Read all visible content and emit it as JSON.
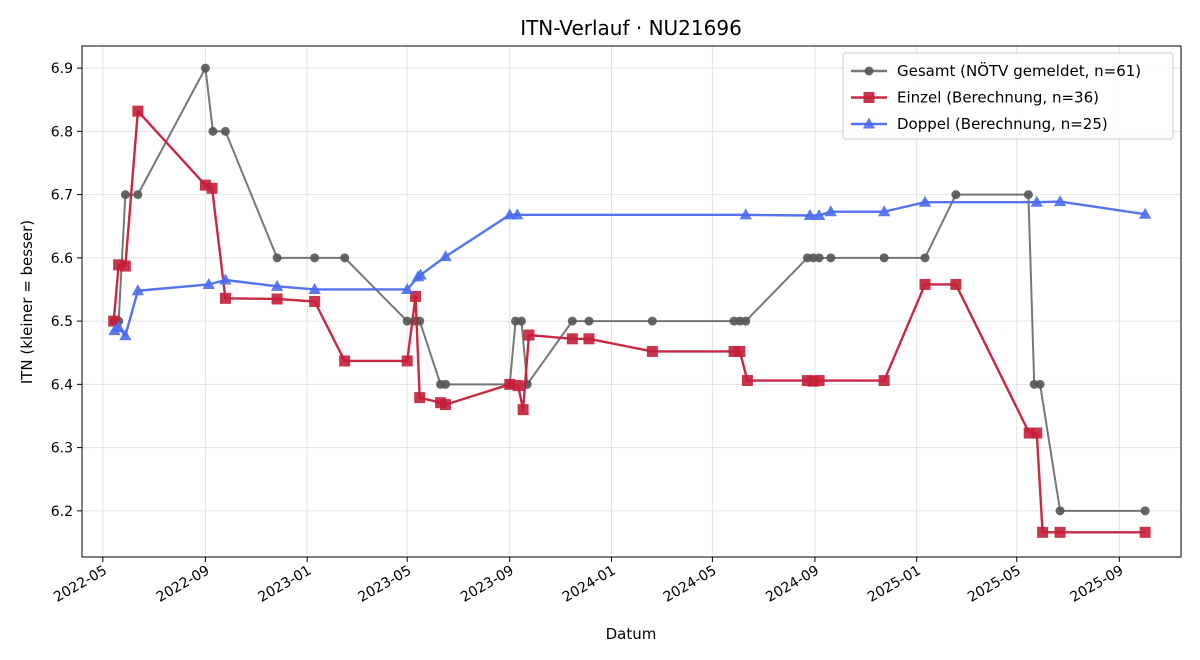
{
  "chart_data": {
    "type": "line",
    "title": "ITN-Verlauf · NU21696",
    "xlabel": "Datum",
    "ylabel": "ITN  (kleiner = besser)",
    "x_type": "date",
    "xlim": [
      "2022-04-06",
      "2025-11-14"
    ],
    "ylim": [
      6.127,
      6.935
    ],
    "x_ticks": [
      "2022-05-01",
      "2022-09-01",
      "2023-01-01",
      "2023-05-01",
      "2023-09-01",
      "2024-01-01",
      "2024-05-01",
      "2024-09-01",
      "2025-01-01",
      "2025-05-01",
      "2025-09-01"
    ],
    "x_tick_labels": [
      "2022-05",
      "2022-09",
      "2023-01",
      "2023-05",
      "2023-09",
      "2024-01",
      "2024-05",
      "2024-09",
      "2025-01",
      "2025-05",
      "2025-09"
    ],
    "y_ticks": [
      6.2,
      6.3,
      6.4,
      6.5,
      6.6,
      6.7,
      6.8,
      6.9
    ],
    "y_tick_labels": [
      "6.2",
      "6.3",
      "6.4",
      "6.5",
      "6.6",
      "6.7",
      "6.8",
      "6.9"
    ],
    "grid": true,
    "legend_position": "top-right",
    "series": [
      {
        "name": "Gesamt (NÖTV gemeldet, n=61)",
        "color": "#555555",
        "marker": "circle",
        "points": [
          [
            "2022-05-15",
            6.5
          ],
          [
            "2022-05-20",
            6.5
          ],
          [
            "2022-05-28",
            6.7
          ],
          [
            "2022-06-12",
            6.7
          ],
          [
            "2022-09-01",
            6.9
          ],
          [
            "2022-09-10",
            6.8
          ],
          [
            "2022-09-25",
            6.8
          ],
          [
            "2022-11-26",
            6.6
          ],
          [
            "2023-01-10",
            6.6
          ],
          [
            "2023-02-15",
            6.6
          ],
          [
            "2023-05-01",
            6.5
          ],
          [
            "2023-05-10",
            6.5
          ],
          [
            "2023-05-16",
            6.5
          ],
          [
            "2023-06-10",
            6.4
          ],
          [
            "2023-06-16",
            6.4
          ],
          [
            "2023-09-01",
            6.4
          ],
          [
            "2023-09-08",
            6.5
          ],
          [
            "2023-09-15",
            6.5
          ],
          [
            "2023-09-22",
            6.4
          ],
          [
            "2023-11-15",
            6.5
          ],
          [
            "2023-12-05",
            6.5
          ],
          [
            "2024-02-19",
            6.5
          ],
          [
            "2024-05-27",
            6.5
          ],
          [
            "2024-06-03",
            6.5
          ],
          [
            "2024-06-10",
            6.5
          ],
          [
            "2024-08-23",
            6.6
          ],
          [
            "2024-08-30",
            6.6
          ],
          [
            "2024-09-06",
            6.6
          ],
          [
            "2024-09-20",
            6.6
          ],
          [
            "2024-11-23",
            6.6
          ],
          [
            "2025-01-11",
            6.6
          ],
          [
            "2025-02-17",
            6.7
          ],
          [
            "2025-05-15",
            6.7
          ],
          [
            "2025-05-22",
            6.4
          ],
          [
            "2025-05-29",
            6.4
          ],
          [
            "2025-06-22",
            6.2
          ],
          [
            "2025-10-02",
            6.2
          ]
        ]
      },
      {
        "name": "Einzel (Berechnung, n=36)",
        "color": "#c41e3a",
        "marker": "square",
        "points": [
          [
            "2022-05-14",
            6.5
          ],
          [
            "2022-05-20",
            6.589
          ],
          [
            "2022-05-28",
            6.587
          ],
          [
            "2022-06-12",
            6.832
          ],
          [
            "2022-09-01",
            6.715
          ],
          [
            "2022-09-09",
            6.71
          ],
          [
            "2022-09-25",
            6.536
          ],
          [
            "2022-11-26",
            6.535
          ],
          [
            "2023-01-10",
            6.531
          ],
          [
            "2023-02-15",
            6.437
          ],
          [
            "2023-05-01",
            6.437
          ],
          [
            "2023-05-11",
            6.539
          ],
          [
            "2023-05-16",
            6.379
          ],
          [
            "2023-06-10",
            6.371
          ],
          [
            "2023-06-16",
            6.368
          ],
          [
            "2023-09-01",
            6.4
          ],
          [
            "2023-09-11",
            6.398
          ],
          [
            "2023-09-17",
            6.36
          ],
          [
            "2023-09-24",
            6.478
          ],
          [
            "2023-11-15",
            6.472
          ],
          [
            "2023-12-05",
            6.472
          ],
          [
            "2024-02-19",
            6.452
          ],
          [
            "2024-05-27",
            6.452
          ],
          [
            "2024-06-03",
            6.452
          ],
          [
            "2024-06-12",
            6.406
          ],
          [
            "2024-08-23",
            6.406
          ],
          [
            "2024-08-30",
            6.405
          ],
          [
            "2024-09-06",
            6.406
          ],
          [
            "2024-11-23",
            6.406
          ],
          [
            "2025-01-11",
            6.558
          ],
          [
            "2025-02-17",
            6.558
          ],
          [
            "2025-05-16",
            6.323
          ],
          [
            "2025-05-25",
            6.323
          ],
          [
            "2025-06-01",
            6.166
          ],
          [
            "2025-06-22",
            6.166
          ],
          [
            "2025-10-02",
            6.166
          ]
        ]
      },
      {
        "name": "Doppel (Berechnung, n=25)",
        "color": "#4a6cf0",
        "marker": "triangle",
        "points": [
          [
            "2022-05-15",
            6.485
          ],
          [
            "2022-05-20",
            6.49
          ],
          [
            "2022-05-28",
            6.477
          ],
          [
            "2022-06-12",
            6.548
          ],
          [
            "2022-09-05",
            6.558
          ],
          [
            "2022-09-25",
            6.565
          ],
          [
            "2022-11-26",
            6.555
          ],
          [
            "2023-01-10",
            6.55
          ],
          [
            "2023-05-01",
            6.55
          ],
          [
            "2023-05-14",
            6.57
          ],
          [
            "2023-05-17",
            6.573
          ],
          [
            "2023-06-16",
            6.602
          ],
          [
            "2023-09-01",
            6.668
          ],
          [
            "2023-09-10",
            6.668
          ],
          [
            "2024-06-10",
            6.668
          ],
          [
            "2024-08-26",
            6.667
          ],
          [
            "2024-09-06",
            6.667
          ],
          [
            "2024-09-20",
            6.673
          ],
          [
            "2024-11-23",
            6.673
          ],
          [
            "2025-01-11",
            6.688
          ],
          [
            "2025-05-25",
            6.688
          ],
          [
            "2025-06-22",
            6.689
          ],
          [
            "2025-10-02",
            6.669
          ]
        ]
      }
    ]
  }
}
